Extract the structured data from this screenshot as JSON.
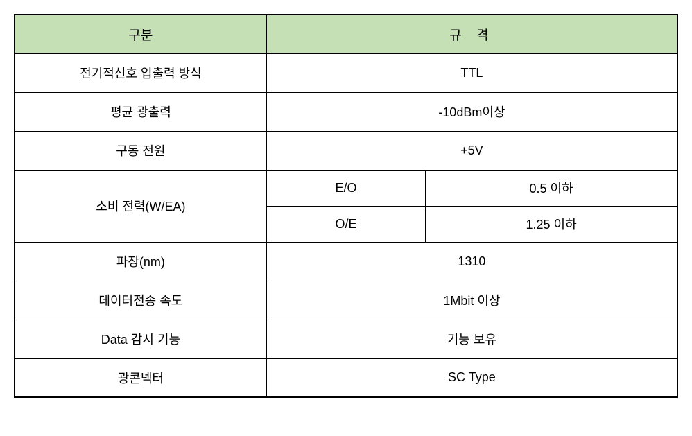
{
  "table": {
    "header_bg": "#c5e0b4",
    "border_color": "#000000",
    "columns": {
      "category": "구분",
      "spec": "규  격"
    },
    "rows": [
      {
        "category": "전기적신호 입출력 방식",
        "spec": "TTL"
      },
      {
        "category": "평균 광출력",
        "spec": "-10dBm이상"
      },
      {
        "category": "구동 전원",
        "spec": "+5V"
      },
      {
        "category": "소비 전력(W/EA)",
        "sub_rows": [
          {
            "label": "E/O",
            "value": "0.5 이하"
          },
          {
            "label": "O/E",
            "value": "1.25 이하"
          }
        ]
      },
      {
        "category": "파장(nm)",
        "spec": "1310"
      },
      {
        "category": "데이터전송 속도",
        "spec": "1Mbit 이상"
      },
      {
        "category": "Data 감시 기능",
        "spec": "기능 보유"
      },
      {
        "category": "광콘넥터",
        "spec": "SC Type"
      }
    ]
  }
}
